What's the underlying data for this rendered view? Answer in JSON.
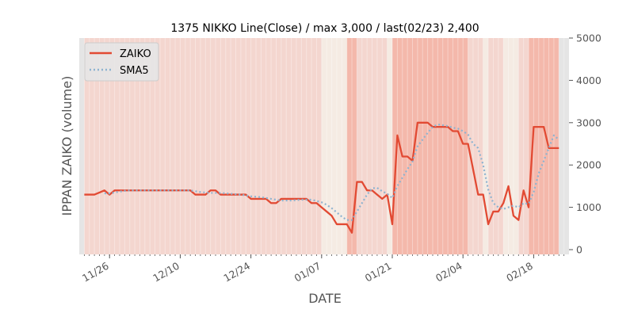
{
  "chart_data": {
    "type": "line",
    "title": "1375 NIKKO Line(Close) / max 3,000 / last(02/23) 2,400",
    "xlabel": "DATE",
    "ylabel": "IPPAN ZAIKO (volume)",
    "ylim": [
      0,
      5000
    ],
    "yticks": [
      0,
      1000,
      2000,
      3000,
      4000,
      5000
    ],
    "y_axis_side": "right",
    "xlim": [
      "2018-11-20",
      "2019-02-25"
    ],
    "xticks": [
      {
        "date": "2018-11-26",
        "label": "11/26"
      },
      {
        "date": "2018-12-10",
        "label": "12/10"
      },
      {
        "date": "2018-12-24",
        "label": "12/24"
      },
      {
        "date": "2019-01-07",
        "label": "01/07"
      },
      {
        "date": "2019-01-21",
        "label": "01/21"
      },
      {
        "date": "2019-02-04",
        "label": "02/04"
      },
      {
        "date": "2019-02-18",
        "label": "02/18"
      }
    ],
    "grid": true,
    "legend_position": "top-left",
    "colors": {
      "zaiko": "#e24a33",
      "sma5": "#8eb3d0",
      "plot_bg": "#e5e5e5",
      "band_light": "#f5ebe3",
      "band_mid": "#f4d6cf",
      "band_strong": "#f4b8ab"
    },
    "series": [
      {
        "name": "ZAIKO",
        "style": "solid",
        "points": [
          [
            "2018-11-21",
            1300
          ],
          [
            "2018-11-22",
            1300
          ],
          [
            "2018-11-23",
            1300
          ],
          [
            "2018-11-24",
            1350
          ],
          [
            "2018-11-25",
            1400
          ],
          [
            "2018-11-26",
            1300
          ],
          [
            "2018-11-27",
            1400
          ],
          [
            "2018-11-28",
            1400
          ],
          [
            "2018-11-29",
            1400
          ],
          [
            "2018-11-30",
            1400
          ],
          [
            "2018-12-01",
            1400
          ],
          [
            "2018-12-02",
            1400
          ],
          [
            "2018-12-03",
            1400
          ],
          [
            "2018-12-04",
            1400
          ],
          [
            "2018-12-05",
            1400
          ],
          [
            "2018-12-06",
            1400
          ],
          [
            "2018-12-07",
            1400
          ],
          [
            "2018-12-08",
            1400
          ],
          [
            "2018-12-09",
            1400
          ],
          [
            "2018-12-10",
            1400
          ],
          [
            "2018-12-11",
            1400
          ],
          [
            "2018-12-12",
            1400
          ],
          [
            "2018-12-13",
            1300
          ],
          [
            "2018-12-14",
            1300
          ],
          [
            "2018-12-15",
            1300
          ],
          [
            "2018-12-16",
            1400
          ],
          [
            "2018-12-17",
            1400
          ],
          [
            "2018-12-18",
            1300
          ],
          [
            "2018-12-19",
            1300
          ],
          [
            "2018-12-20",
            1300
          ],
          [
            "2018-12-21",
            1300
          ],
          [
            "2018-12-22",
            1300
          ],
          [
            "2018-12-23",
            1300
          ],
          [
            "2018-12-24",
            1200
          ],
          [
            "2018-12-25",
            1200
          ],
          [
            "2018-12-26",
            1200
          ],
          [
            "2018-12-27",
            1200
          ],
          [
            "2018-12-28",
            1100
          ],
          [
            "2018-12-29",
            1100
          ],
          [
            "2018-12-30",
            1200
          ],
          [
            "2018-12-31",
            1200
          ],
          [
            "2019-01-01",
            1200
          ],
          [
            "2019-01-02",
            1200
          ],
          [
            "2019-01-03",
            1200
          ],
          [
            "2019-01-04",
            1200
          ],
          [
            "2019-01-05",
            1100
          ],
          [
            "2019-01-06",
            1100
          ],
          [
            "2019-01-07",
            1000
          ],
          [
            "2019-01-08",
            900
          ],
          [
            "2019-01-09",
            800
          ],
          [
            "2019-01-10",
            600
          ],
          [
            "2019-01-11",
            600
          ],
          [
            "2019-01-12",
            600
          ],
          [
            "2019-01-13",
            400
          ],
          [
            "2019-01-14",
            1600
          ],
          [
            "2019-01-15",
            1600
          ],
          [
            "2019-01-16",
            1400
          ],
          [
            "2019-01-17",
            1400
          ],
          [
            "2019-01-18",
            1300
          ],
          [
            "2019-01-19",
            1200
          ],
          [
            "2019-01-20",
            1300
          ],
          [
            "2019-01-21",
            600
          ],
          [
            "2019-01-22",
            2700
          ],
          [
            "2019-01-23",
            2200
          ],
          [
            "2019-01-24",
            2200
          ],
          [
            "2019-01-25",
            2100
          ],
          [
            "2019-01-26",
            3000
          ],
          [
            "2019-01-27",
            3000
          ],
          [
            "2019-01-28",
            3000
          ],
          [
            "2019-01-29",
            2900
          ],
          [
            "2019-01-30",
            2900
          ],
          [
            "2019-01-31",
            2900
          ],
          [
            "2019-02-01",
            2900
          ],
          [
            "2019-02-02",
            2800
          ],
          [
            "2019-02-03",
            2800
          ],
          [
            "2019-02-04",
            2500
          ],
          [
            "2019-02-05",
            2500
          ],
          [
            "2019-02-06",
            1900
          ],
          [
            "2019-02-07",
            1300
          ],
          [
            "2019-02-08",
            1300
          ],
          [
            "2019-02-09",
            600
          ],
          [
            "2019-02-10",
            900
          ],
          [
            "2019-02-11",
            900
          ],
          [
            "2019-02-12",
            1100
          ],
          [
            "2019-02-13",
            1500
          ],
          [
            "2019-02-14",
            800
          ],
          [
            "2019-02-15",
            700
          ],
          [
            "2019-02-16",
            1400
          ],
          [
            "2019-02-17",
            1000
          ],
          [
            "2019-02-18",
            2900
          ],
          [
            "2019-02-19",
            2900
          ],
          [
            "2019-02-20",
            2900
          ],
          [
            "2019-02-21",
            2400
          ],
          [
            "2019-02-22",
            2400
          ],
          [
            "2019-02-23",
            2400
          ]
        ]
      },
      {
        "name": "SMA5",
        "style": "dotted",
        "points": [
          [
            "2018-11-25",
            1330
          ],
          [
            "2018-11-26",
            1330
          ],
          [
            "2018-11-27",
            1350
          ],
          [
            "2018-11-28",
            1370
          ],
          [
            "2018-11-29",
            1390
          ],
          [
            "2018-11-30",
            1400
          ],
          [
            "2018-12-05",
            1400
          ],
          [
            "2018-12-12",
            1400
          ],
          [
            "2018-12-13",
            1380
          ],
          [
            "2018-12-14",
            1360
          ],
          [
            "2018-12-16",
            1340
          ],
          [
            "2018-12-18",
            1340
          ],
          [
            "2018-12-20",
            1320
          ],
          [
            "2018-12-22",
            1300
          ],
          [
            "2018-12-24",
            1260
          ],
          [
            "2018-12-26",
            1240
          ],
          [
            "2018-12-28",
            1200
          ],
          [
            "2018-12-30",
            1160
          ],
          [
            "2019-01-01",
            1160
          ],
          [
            "2019-01-03",
            1180
          ],
          [
            "2019-01-05",
            1180
          ],
          [
            "2019-01-07",
            1120
          ],
          [
            "2019-01-08",
            1060
          ],
          [
            "2019-01-09",
            980
          ],
          [
            "2019-01-10",
            880
          ],
          [
            "2019-01-11",
            780
          ],
          [
            "2019-01-12",
            700
          ],
          [
            "2019-01-13",
            700
          ],
          [
            "2019-01-14",
            900
          ],
          [
            "2019-01-15",
            1100
          ],
          [
            "2019-01-16",
            1300
          ],
          [
            "2019-01-17",
            1450
          ],
          [
            "2019-01-18",
            1460
          ],
          [
            "2019-01-19",
            1380
          ],
          [
            "2019-01-20",
            1320
          ],
          [
            "2019-01-21",
            1220
          ],
          [
            "2019-01-22",
            1500
          ],
          [
            "2019-01-23",
            1700
          ],
          [
            "2019-01-24",
            1900
          ],
          [
            "2019-01-25",
            2080
          ],
          [
            "2019-01-26",
            2440
          ],
          [
            "2019-01-27",
            2600
          ],
          [
            "2019-01-28",
            2760
          ],
          [
            "2019-01-29",
            2900
          ],
          [
            "2019-01-30",
            2960
          ],
          [
            "2019-01-31",
            2940
          ],
          [
            "2019-02-01",
            2920
          ],
          [
            "2019-02-02",
            2880
          ],
          [
            "2019-02-03",
            2860
          ],
          [
            "2019-02-04",
            2800
          ],
          [
            "2019-02-05",
            2720
          ],
          [
            "2019-02-06",
            2500
          ],
          [
            "2019-02-07",
            2400
          ],
          [
            "2019-02-08",
            2000
          ],
          [
            "2019-02-09",
            1420
          ],
          [
            "2019-02-10",
            1100
          ],
          [
            "2019-02-11",
            1000
          ],
          [
            "2019-02-12",
            960
          ],
          [
            "2019-02-13",
            1000
          ],
          [
            "2019-02-14",
            1040
          ],
          [
            "2019-02-15",
            1000
          ],
          [
            "2019-02-16",
            1100
          ],
          [
            "2019-02-17",
            1080
          ],
          [
            "2019-02-18",
            1360
          ],
          [
            "2019-02-19",
            1800
          ],
          [
            "2019-02-20",
            2100
          ],
          [
            "2019-02-21",
            2400
          ],
          [
            "2019-02-22",
            2700
          ],
          [
            "2019-02-23",
            2600
          ]
        ]
      }
    ],
    "background_bands": [
      {
        "from": "2018-11-20",
        "to": "2018-11-21",
        "level": "none"
      },
      {
        "from": "2018-11-21",
        "to": "2019-01-07",
        "level": "mid"
      },
      {
        "from": "2019-01-07",
        "to": "2019-01-12",
        "level": "light"
      },
      {
        "from": "2019-01-12",
        "to": "2019-01-14",
        "level": "strong"
      },
      {
        "from": "2019-01-14",
        "to": "2019-01-20",
        "level": "mid"
      },
      {
        "from": "2019-01-20",
        "to": "2019-01-21",
        "level": "light"
      },
      {
        "from": "2019-01-21",
        "to": "2019-02-05",
        "level": "strong"
      },
      {
        "from": "2019-02-05",
        "to": "2019-02-08",
        "level": "mid"
      },
      {
        "from": "2019-02-08",
        "to": "2019-02-09",
        "level": "light"
      },
      {
        "from": "2019-02-09",
        "to": "2019-02-12",
        "level": "mid"
      },
      {
        "from": "2019-02-12",
        "to": "2019-02-15",
        "level": "light"
      },
      {
        "from": "2019-02-15",
        "to": "2019-02-17",
        "level": "mid"
      },
      {
        "from": "2019-02-17",
        "to": "2019-02-23",
        "level": "strong"
      },
      {
        "from": "2019-02-23",
        "to": "2019-02-25",
        "level": "none"
      }
    ]
  }
}
